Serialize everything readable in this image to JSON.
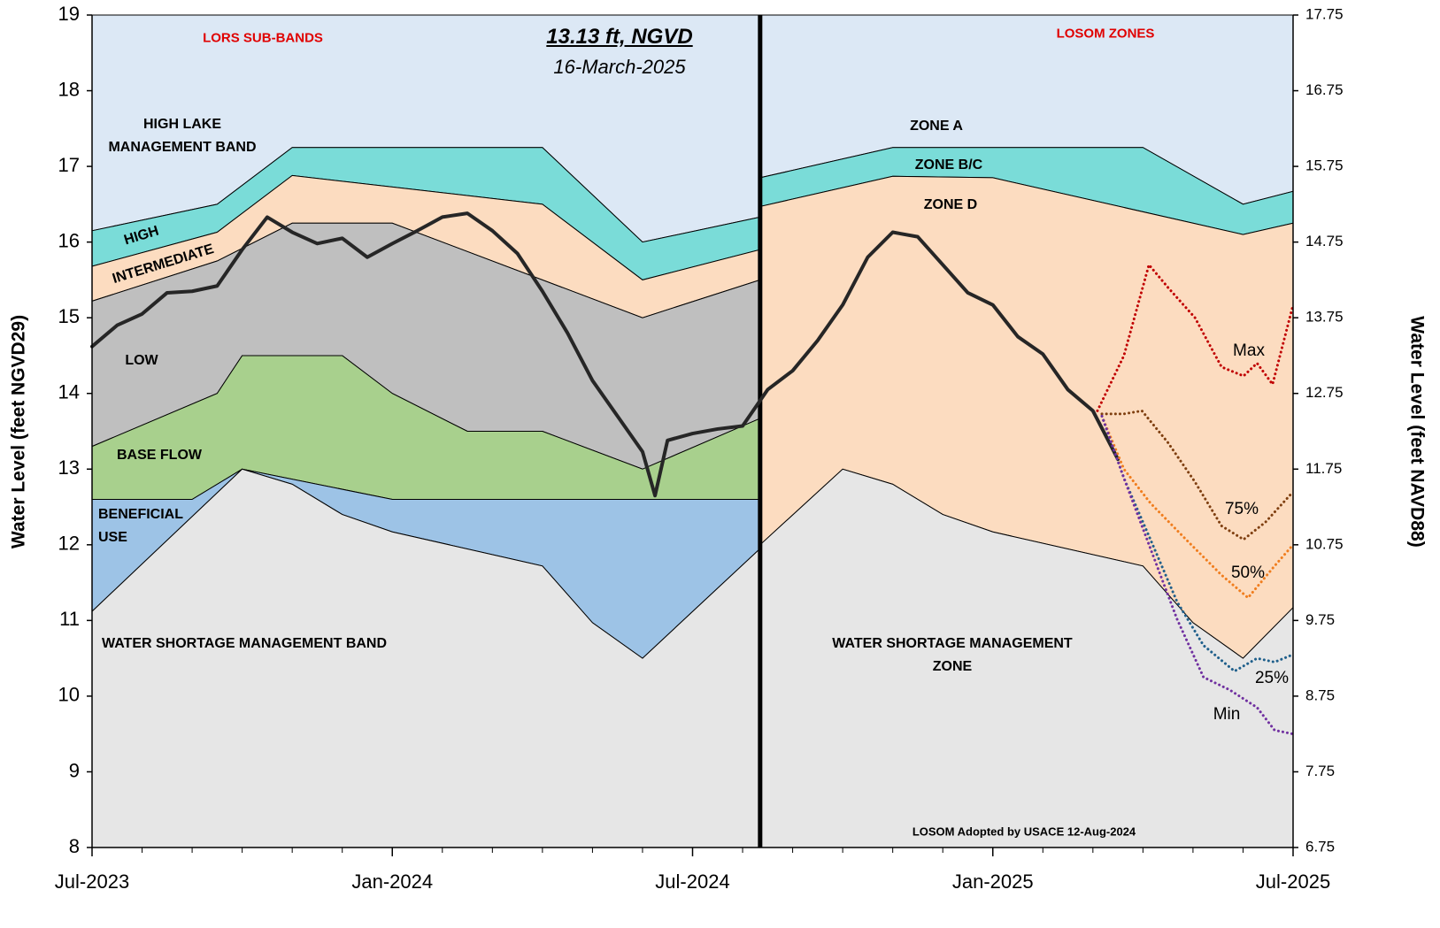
{
  "chart_data": {
    "type": "area",
    "ylabel": "Water Level (feet NGVD29)",
    "y2label": "Water Level (feet NAVD88)",
    "xlim": [
      0,
      24
    ],
    "xticks": [
      {
        "value": 0,
        "label": "Jul-2023"
      },
      {
        "value": 6,
        "label": "Jan-2024"
      },
      {
        "value": 12,
        "label": "Jul-2024"
      },
      {
        "value": 18,
        "label": "Jan-2025"
      },
      {
        "value": 24,
        "label": "Jul-2025"
      }
    ],
    "xminorticks": [
      1,
      2,
      3,
      4,
      5,
      7,
      8,
      9,
      10,
      11,
      13,
      14,
      15,
      16,
      17,
      19,
      20,
      21,
      22,
      23
    ],
    "ylim": [
      8,
      19
    ],
    "yticks": [
      8,
      9,
      10,
      11,
      12,
      13,
      14,
      15,
      16,
      17,
      18,
      19
    ],
    "y2lim": [
      6.75,
      17.75
    ],
    "y2ticks": [
      6.75,
      7.75,
      8.75,
      9.75,
      10.75,
      11.75,
      12.75,
      13.75,
      14.75,
      15.75,
      16.75,
      17.75
    ],
    "section_titles": [
      "LORS SUB-BANDS",
      "LOSOM ZONES"
    ],
    "annotations": [
      "13.13 ft, NGVD",
      "16-March-2025",
      "LOSOM Adopted by USACE 12-Aug-2024"
    ],
    "vlines": [
      13.35
    ],
    "bands": [
      {
        "name": "HIGH LAKE MANAGEMENT BAND",
        "color": "#dce8f5",
        "upper": {
          "x": [
            0,
            13.35
          ],
          "y": [
            19,
            19
          ]
        },
        "lower": {
          "x": [
            0,
            2.5,
            4,
            9,
            11,
            13.35
          ],
          "y": [
            16.15,
            16.5,
            17.25,
            17.25,
            16.0,
            16.33
          ]
        }
      },
      {
        "name": "HIGH",
        "color": "#7adcd8",
        "upper": {
          "x": [
            0,
            2.5,
            4,
            9,
            11,
            13.35
          ],
          "y": [
            16.15,
            16.5,
            17.25,
            17.25,
            16.0,
            16.33
          ]
        },
        "lower": {
          "x": [
            0,
            2.5,
            4,
            9,
            11,
            13.35
          ],
          "y": [
            15.68,
            16.13,
            16.88,
            16.5,
            15.5,
            15.9
          ]
        }
      },
      {
        "name": "INTERMEDIATE",
        "color": "#fcdcc0",
        "upper": {
          "x": [
            0,
            2.5,
            4,
            9,
            11,
            13.35
          ],
          "y": [
            15.68,
            16.13,
            16.88,
            16.5,
            15.5,
            15.9
          ]
        },
        "lower": {
          "x": [
            0,
            2.5,
            4,
            6,
            11,
            13.35
          ],
          "y": [
            15.22,
            15.75,
            16.25,
            16.25,
            15.0,
            15.5
          ]
        }
      },
      {
        "name": "LOW",
        "color": "#bfbfbf",
        "upper": {
          "x": [
            0,
            2.5,
            4,
            6,
            11,
            13.35
          ],
          "y": [
            15.22,
            15.75,
            16.25,
            16.25,
            15.0,
            15.5
          ]
        },
        "lower": {
          "x": [
            0,
            2.5,
            3,
            5,
            6,
            7.5,
            9,
            11,
            13.35
          ],
          "y": [
            13.3,
            14.0,
            14.5,
            14.5,
            14.0,
            13.5,
            13.5,
            13.0,
            13.67
          ]
        }
      },
      {
        "name": "BASE FLOW",
        "color": "#a8d08d",
        "upper": {
          "x": [
            0,
            2.5,
            3,
            5,
            6,
            7.5,
            9,
            11,
            13.35
          ],
          "y": [
            13.3,
            14.0,
            14.5,
            14.5,
            14.0,
            13.5,
            13.5,
            13.0,
            13.67
          ]
        },
        "lower": {
          "x": [
            0,
            2,
            3,
            6,
            13.35
          ],
          "y": [
            12.6,
            12.6,
            13.0,
            12.6,
            12.6
          ]
        }
      },
      {
        "name": "BENEFICIAL USE",
        "color": "#9dc3e6",
        "upper": {
          "x": [
            0,
            2,
            3,
            6,
            13.35
          ],
          "y": [
            12.6,
            12.6,
            13.0,
            12.6,
            12.6
          ]
        },
        "lower": {
          "x": [
            0,
            3,
            4,
            5,
            6,
            9,
            10,
            11,
            13.35
          ],
          "y": [
            11.12,
            13.0,
            12.8,
            12.4,
            12.17,
            11.72,
            10.97,
            10.5,
            11.95
          ]
        }
      },
      {
        "name": "WATER SHORTAGE MANAGEMENT BAND",
        "color": "#e6e6e6",
        "upper": {
          "x": [
            0,
            3,
            4,
            5,
            6,
            9,
            10,
            11,
            13.35
          ],
          "y": [
            11.12,
            13.0,
            12.8,
            12.4,
            12.17,
            11.72,
            10.97,
            10.5,
            11.95
          ]
        },
        "lower": {
          "x": [
            0,
            13.35
          ],
          "y": [
            8,
            8
          ]
        }
      },
      {
        "name": "ZONE A",
        "color": "#dce8f5",
        "upper": {
          "x": [
            13.35,
            24
          ],
          "y": [
            19,
            19
          ]
        },
        "lower": {
          "x": [
            13.35,
            16,
            21,
            23,
            24
          ],
          "y": [
            16.85,
            17.25,
            17.25,
            16.5,
            16.67
          ]
        }
      },
      {
        "name": "ZONE B/C",
        "color": "#7adcd8",
        "upper": {
          "x": [
            13.35,
            16,
            21,
            23,
            24
          ],
          "y": [
            16.85,
            17.25,
            17.25,
            16.5,
            16.67
          ]
        },
        "lower": {
          "x": [
            13.35,
            16,
            18,
            23,
            24
          ],
          "y": [
            16.47,
            16.87,
            16.85,
            16.1,
            16.25
          ]
        }
      },
      {
        "name": "ZONE D",
        "color": "#fcdcc0",
        "upper": {
          "x": [
            13.35,
            16,
            18,
            23,
            24
          ],
          "y": [
            16.47,
            16.87,
            16.85,
            16.1,
            16.25
          ]
        },
        "lower": {
          "x": [
            13.35,
            15,
            16,
            17,
            18,
            21,
            22,
            23,
            24
          ],
          "y": [
            12.0,
            13.0,
            12.8,
            12.4,
            12.17,
            11.72,
            10.97,
            10.5,
            11.17
          ]
        }
      },
      {
        "name": "WATER SHORTAGE MANAGEMENT ZONE",
        "color": "#e6e6e6",
        "upper": {
          "x": [
            13.35,
            15,
            16,
            17,
            18,
            21,
            22,
            23,
            24
          ],
          "y": [
            12.0,
            13.0,
            12.8,
            12.4,
            12.17,
            11.72,
            10.97,
            10.5,
            11.17
          ]
        },
        "lower": {
          "x": [
            13.35,
            24
          ],
          "y": [
            8,
            8
          ]
        }
      }
    ],
    "series": [
      {
        "color": "#262626",
        "style": "solid",
        "x": [
          0,
          0.5,
          1,
          1.5,
          2,
          2.5,
          3,
          3.5,
          4,
          4.5,
          5,
          5.5,
          6,
          6.5,
          7,
          7.5,
          8,
          8.5,
          9,
          9.5,
          10,
          10.5,
          11,
          11.25,
          11.5,
          12,
          12.5,
          13,
          13.5,
          14,
          14.5,
          15,
          15.5,
          16,
          16.5,
          17,
          17.5,
          18,
          18.5,
          19,
          19.5,
          20,
          20.5
        ],
        "values": [
          14.62,
          14.9,
          15.05,
          15.33,
          15.35,
          15.42,
          15.9,
          16.33,
          16.13,
          15.98,
          16.05,
          15.8,
          15.98,
          16.15,
          16.33,
          16.38,
          16.15,
          15.85,
          15.35,
          14.8,
          14.17,
          13.7,
          13.23,
          12.65,
          13.38,
          13.47,
          13.53,
          13.57,
          14.05,
          14.3,
          14.7,
          15.17,
          15.8,
          16.13,
          16.07,
          15.7,
          15.33,
          15.17,
          14.75,
          14.52,
          14.05,
          13.77,
          13.13
        ]
      },
      {
        "name": "Max",
        "color": "#c00000",
        "style": "dotted",
        "x": [
          20.09,
          20.62,
          21.12,
          21.5,
          22.04,
          22.57,
          23.01,
          23.28,
          23.59,
          24
        ],
        "values": [
          13.77,
          14.5,
          15.7,
          15.4,
          15.0,
          14.35,
          14.23,
          14.4,
          14.12,
          15.17
        ]
      },
      {
        "name": "75%",
        "color": "#7f3f10",
        "style": "dotted",
        "x": [
          20.18,
          20.62,
          20.98,
          21.5,
          22.04,
          22.57,
          23.01,
          23.45,
          24
        ],
        "values": [
          13.73,
          13.73,
          13.77,
          13.35,
          12.83,
          12.25,
          12.07,
          12.3,
          12.7
        ]
      },
      {
        "name": "50%",
        "color": "#f07d1e",
        "style": "dotted",
        "x": [
          20.18,
          20.62,
          21.15,
          21.86,
          22.57,
          23.1,
          23.63,
          24
        ],
        "values": [
          13.7,
          13.0,
          12.55,
          12.07,
          11.6,
          11.3,
          11.72,
          12.0
        ]
      },
      {
        "name": "25%",
        "color": "#1f5f8b",
        "style": "dotted",
        "x": [
          20.18,
          20.62,
          21.15,
          21.68,
          22.21,
          22.83,
          23.28,
          23.63,
          24
        ],
        "values": [
          13.7,
          12.88,
          12.07,
          11.25,
          10.67,
          10.33,
          10.5,
          10.45,
          10.55
        ]
      },
      {
        "name": "Min",
        "color": "#7030a0",
        "style": "dotted",
        "x": [
          20.18,
          20.62,
          21.15,
          21.68,
          22.21,
          22.74,
          23.28,
          23.63,
          24
        ],
        "values": [
          13.7,
          12.88,
          11.95,
          11.02,
          10.25,
          10.08,
          9.85,
          9.55,
          9.5
        ]
      }
    ]
  }
}
